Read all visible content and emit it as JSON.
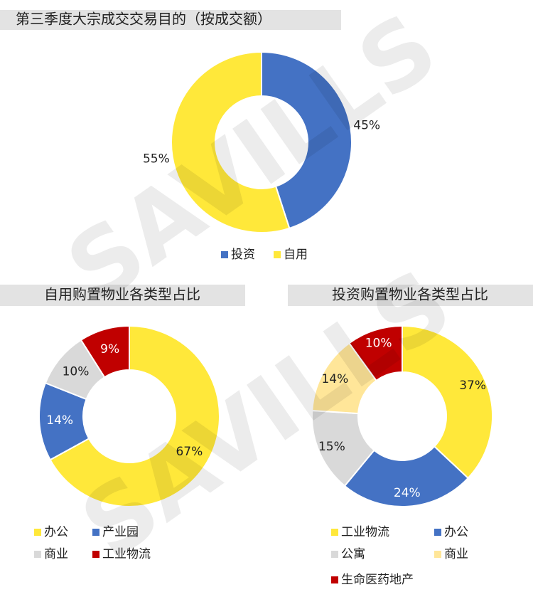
{
  "watermark": "SAVILLS",
  "chart_data": [
    {
      "type": "donut",
      "title": "第三季度大宗成交交易目的（按成交额）",
      "categories": [
        "投资",
        "自用"
      ],
      "values": [
        45,
        55
      ],
      "value_labels": [
        "45%",
        "55%"
      ],
      "colors": [
        "#4472c4",
        "#ffe83a"
      ]
    },
    {
      "type": "donut",
      "title": "自用购置物业各类型占比",
      "categories": [
        "办公",
        "产业园",
        "商业",
        "工业物流"
      ],
      "values": [
        67,
        14,
        10,
        9
      ],
      "value_labels": [
        "67%",
        "14%",
        "10%",
        "9%"
      ],
      "colors": [
        "#ffe83a",
        "#4472c4",
        "#d9d9d9",
        "#c00000"
      ]
    },
    {
      "type": "donut",
      "title": "投资购置物业各类型占比",
      "categories": [
        "工业物流",
        "办公",
        "公寓",
        "商业",
        "生命医药地产"
      ],
      "values": [
        37,
        24,
        15,
        14,
        10
      ],
      "value_labels": [
        "37%",
        "24%",
        "15%",
        "14%",
        "10%"
      ],
      "colors": [
        "#ffe83a",
        "#4472c4",
        "#d9d9d9",
        "#ffe699",
        "#c00000"
      ]
    }
  ]
}
